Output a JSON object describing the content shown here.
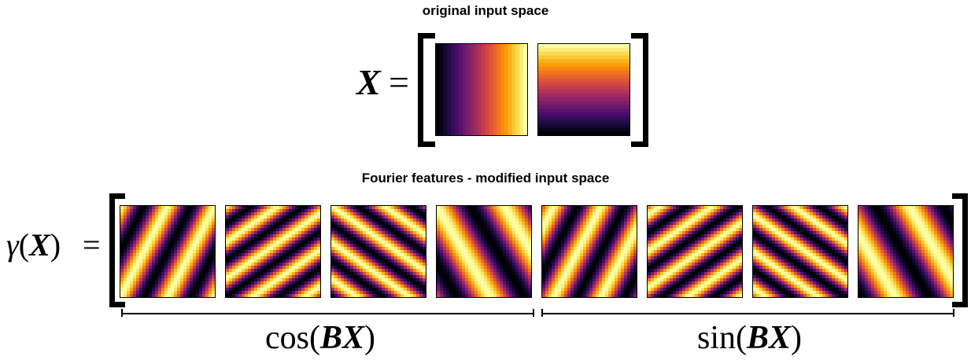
{
  "top": {
    "title": "original input space",
    "lhs": "X",
    "equals": "=",
    "panels": [
      {
        "name": "x-coordinate-gradient",
        "orientation": "vertical-bands",
        "direction": "dark-left-to-bright-right"
      },
      {
        "name": "y-coordinate-gradient",
        "orientation": "horizontal-bands",
        "direction": "bright-top-to-dark-bottom"
      }
    ]
  },
  "bottom": {
    "title": "Fourier features - modified input space",
    "lhs_fn": "γ",
    "lhs_arg": "X",
    "equals": "=",
    "cos_label": {
      "fn": "cos",
      "arg1": "B",
      "arg2": "X"
    },
    "sin_label": {
      "fn": "sin",
      "arg1": "B",
      "arg2": "X"
    },
    "features": [
      {
        "group": "cos",
        "kx": 2.0,
        "ky": 1.0
      },
      {
        "group": "cos",
        "kx": 1.8,
        "ky": 2.5
      },
      {
        "group": "cos",
        "kx": -1.8,
        "ky": 2.5
      },
      {
        "group": "cos",
        "kx": -1.4,
        "ky": 0.8
      },
      {
        "group": "sin",
        "kx": 2.0,
        "ky": 1.0
      },
      {
        "group": "sin",
        "kx": 1.8,
        "ky": 2.5
      },
      {
        "group": "sin",
        "kx": -1.8,
        "ky": 2.5
      },
      {
        "group": "sin",
        "kx": -1.4,
        "ky": 0.8
      }
    ]
  },
  "colormap": [
    "#000004",
    "#1b0c41",
    "#4a0c6b",
    "#781c6d",
    "#a52c60",
    "#cf4446",
    "#ed6925",
    "#fb9b06",
    "#f7d13d",
    "#fcffa4"
  ]
}
